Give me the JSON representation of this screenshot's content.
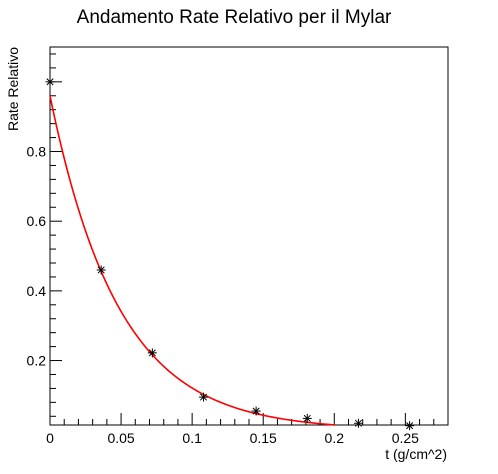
{
  "chart_data": {
    "type": "scatter",
    "title": "Andamento Rate Relativo per il Mylar",
    "xlabel": "t (g/cm^2)",
    "ylabel": "Rate Relativo",
    "xlim": [
      0,
      0.28
    ],
    "ylim": [
      0.015,
      1.1
    ],
    "x_ticks": [
      0,
      0.05,
      0.1,
      0.15,
      0.2,
      0.25
    ],
    "x_tick_labels": [
      "0",
      "0.05",
      "0.1",
      "0.15",
      "0.2",
      "0.25"
    ],
    "y_ticks": [
      0.2,
      0.4,
      0.6,
      0.8
    ],
    "y_tick_labels": [
      "0.2",
      "0.4",
      "0.6",
      "0.8"
    ],
    "grid": false,
    "points": [
      {
        "x": 0,
        "y": 1.0
      },
      {
        "x": 0.036,
        "y": 0.46
      },
      {
        "x": 0.072,
        "y": 0.222
      },
      {
        "x": 0.108,
        "y": 0.095
      },
      {
        "x": 0.145,
        "y": 0.055
      },
      {
        "x": 0.181,
        "y": 0.034
      },
      {
        "x": 0.217,
        "y": 0.02
      },
      {
        "x": 0.253,
        "y": 0.013
      }
    ],
    "fit": {
      "model": "exponential",
      "a": 0.96,
      "b": 20.7,
      "x_range": [
        0,
        0.22
      ],
      "color": "#ff0000"
    },
    "marker_color": "#000000"
  }
}
